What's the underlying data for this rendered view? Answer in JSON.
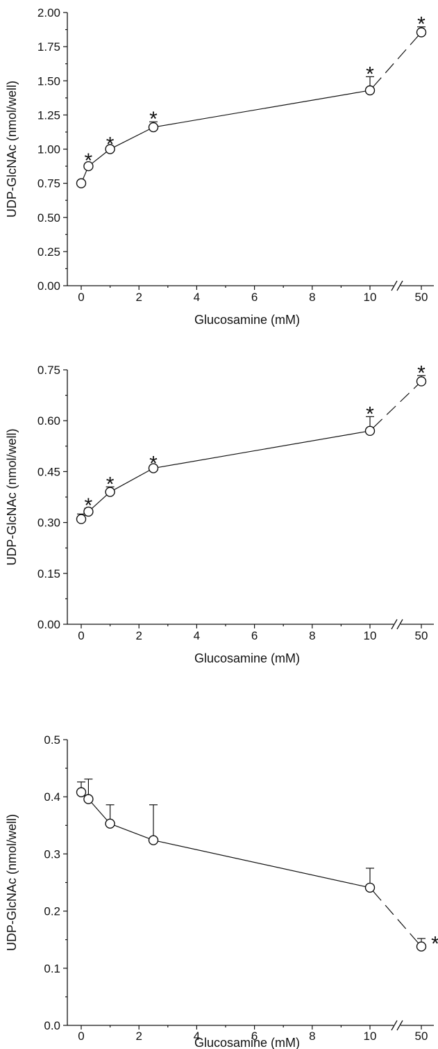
{
  "chart_data": [
    {
      "type": "line",
      "xlabel": "Glucosamine (mM)",
      "ylabel": "UDP-GlcNAc (nmol/well)",
      "ylim": [
        0,
        2.0
      ],
      "y_ticks": [
        "0.00",
        "0.25",
        "0.50",
        "0.75",
        "1.00",
        "1.25",
        "1.50",
        "1.75",
        "2.00"
      ],
      "x_ticks": [
        "0",
        "2",
        "4",
        "6",
        "8",
        "10",
        "50"
      ],
      "x_axis_break": "between 10 and 50",
      "series": [
        {
          "x": [
            0,
            0.25,
            1,
            2.5,
            10,
            50
          ],
          "values": [
            0.75,
            0.875,
            1.0,
            1.16,
            1.43,
            1.855
          ],
          "error_plus": [
            0.02,
            0.02,
            0.015,
            0.04,
            0.1,
            0.04
          ],
          "significance": [
            "",
            "*",
            "*",
            "*",
            "*",
            "*"
          ]
        }
      ]
    },
    {
      "type": "line",
      "xlabel": "Glucosamine (mM)",
      "ylabel": "UDP-GlcNAc (nmol/well)",
      "ylim": [
        0,
        0.75
      ],
      "y_ticks": [
        "0.00",
        "0.15",
        "0.30",
        "0.45",
        "0.60",
        "0.75"
      ],
      "x_ticks": [
        "0",
        "2",
        "4",
        "6",
        "8",
        "10",
        "50"
      ],
      "x_axis_break": "between 10 and 50",
      "series": [
        {
          "x": [
            0,
            0.25,
            1,
            2.5,
            10,
            50
          ],
          "values": [
            0.31,
            0.332,
            0.39,
            0.46,
            0.57,
            0.716
          ],
          "error_plus": [
            0.015,
            0.01,
            0.015,
            0.006,
            0.042,
            0.017
          ],
          "significance": [
            "",
            "*",
            "*",
            "*",
            "*",
            "*"
          ]
        }
      ]
    },
    {
      "type": "line",
      "xlabel": "Glucosamine (mM)",
      "ylabel": "UDP-GlcNAc (nmol/well)",
      "ylim": [
        0,
        0.5
      ],
      "y_ticks": [
        "0.0",
        "0.1",
        "0.2",
        "0.3",
        "0.4",
        "0.5"
      ],
      "x_ticks": [
        "0",
        "2",
        "4",
        "6",
        "8",
        "10",
        "50"
      ],
      "x_axis_break": "between 10 and 50",
      "series": [
        {
          "x": [
            0,
            0.25,
            1,
            2.5,
            10,
            50
          ],
          "values": [
            0.408,
            0.396,
            0.353,
            0.324,
            0.241,
            0.138
          ],
          "error_plus": [
            0.018,
            0.035,
            0.033,
            0.062,
            0.034,
            0.014
          ],
          "significance": [
            "",
            "",
            "",
            "",
            "",
            "*"
          ]
        }
      ]
    }
  ]
}
